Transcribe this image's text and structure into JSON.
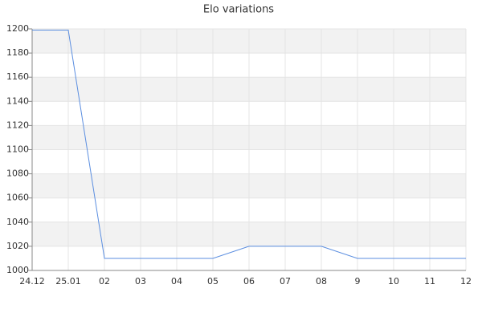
{
  "chart_data": {
    "type": "line",
    "title": "Elo variations",
    "categories": [
      "24.12",
      "25.01",
      "02",
      "03",
      "04",
      "05",
      "06",
      "07",
      "08",
      "9",
      "10",
      "11",
      "12"
    ],
    "values": [
      1199,
      1199,
      1010,
      1010,
      1010,
      1010,
      1020,
      1020,
      1020,
      1010,
      1010,
      1010,
      1010
    ],
    "color": "#5b8ee0",
    "ylim": [
      1000,
      1200
    ],
    "yticks": [
      1000,
      1020,
      1040,
      1060,
      1080,
      1100,
      1120,
      1140,
      1160,
      1180,
      1200
    ],
    "grid": true
  }
}
